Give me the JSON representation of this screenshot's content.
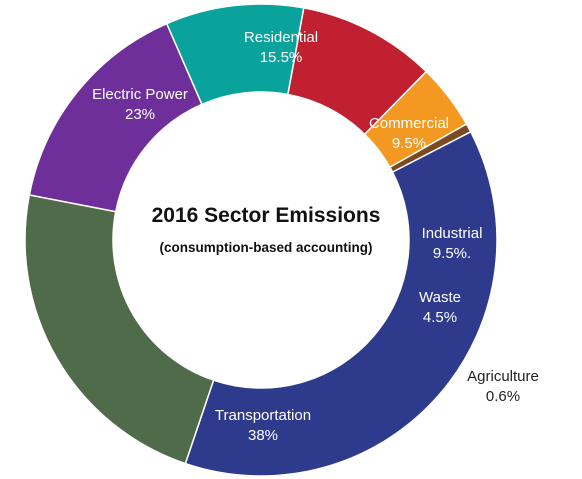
{
  "chart_data": {
    "type": "pie",
    "variant": "donut",
    "title": "2016 Sector Emissions",
    "subtitle": "(consumption-based accounting)",
    "slices": [
      {
        "name": "Residential",
        "value_label": "15.5%",
        "value": 15.5,
        "color": "#6e2f9a",
        "text_color": "#ffffff"
      },
      {
        "name": "Commercial",
        "value_label": "9.5%",
        "value": 9.5,
        "color": "#0aa39b",
        "text_color": "#ffffff"
      },
      {
        "name": "Industrial",
        "value_label": "9.5%.",
        "value": 9.5,
        "color": "#c0202f",
        "text_color": "#ffffff"
      },
      {
        "name": "Waste",
        "value_label": "4.5%",
        "value": 4.5,
        "color": "#f39820",
        "text_color": "#ffffff"
      },
      {
        "name": "Agriculture",
        "value_label": "0.6%",
        "value": 0.6,
        "color": "#7b4a23",
        "text_color": "#222222"
      },
      {
        "name": "Transportation",
        "value_label": "38%",
        "value": 38,
        "color": "#2e3a8c",
        "text_color": "#ffffff"
      },
      {
        "name": "Electric Power",
        "value_label": "23%",
        "value": 23,
        "color": "#4f6b4a",
        "text_color": "#ffffff"
      }
    ]
  }
}
